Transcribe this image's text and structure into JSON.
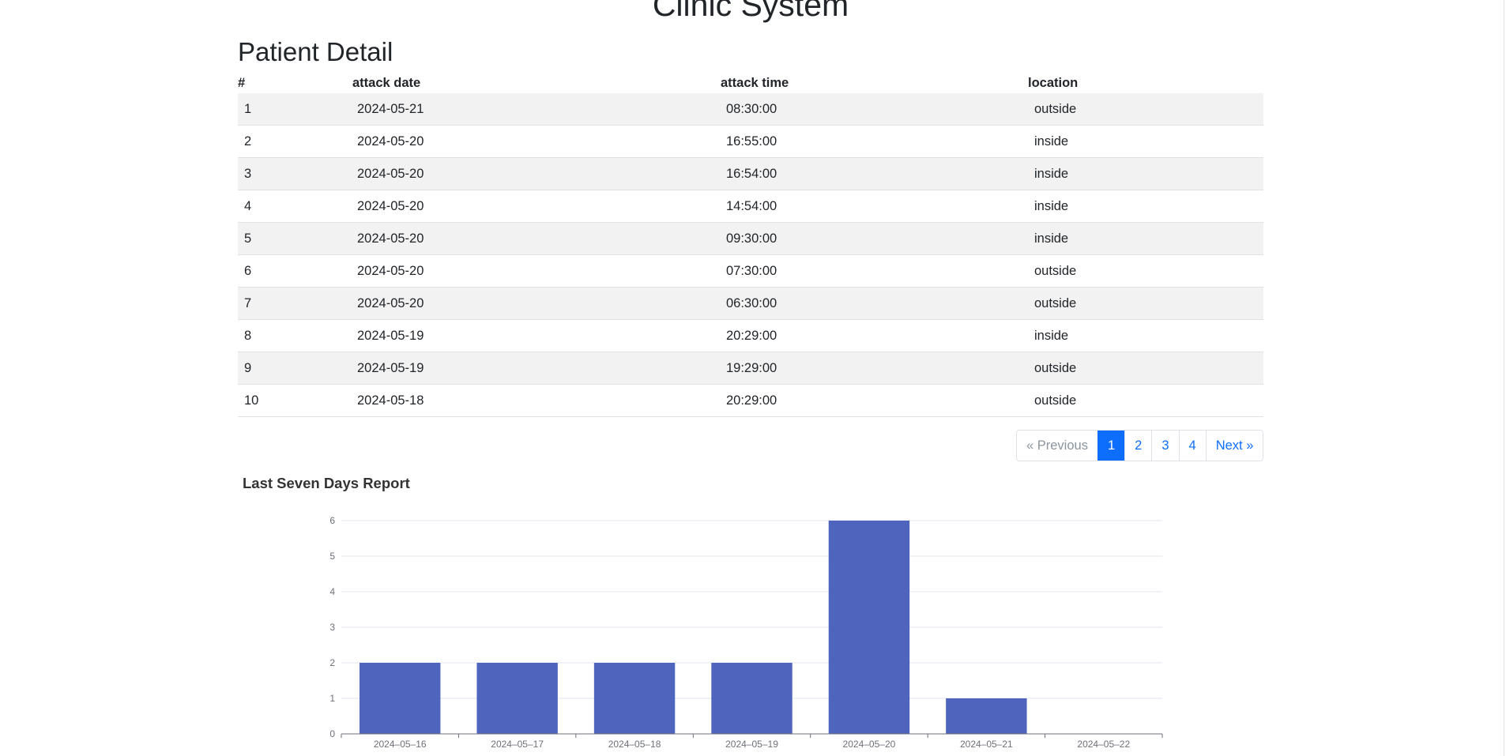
{
  "header": {
    "app_title": "Clinic System",
    "section_title": "Patient Detail"
  },
  "table": {
    "columns": [
      "#",
      "attack date",
      "attack time",
      "location"
    ],
    "rows": [
      {
        "num": "1",
        "date": "2024-05-21",
        "time": "08:30:00",
        "location": "outside"
      },
      {
        "num": "2",
        "date": "2024-05-20",
        "time": "16:55:00",
        "location": "inside"
      },
      {
        "num": "3",
        "date": "2024-05-20",
        "time": "16:54:00",
        "location": "inside"
      },
      {
        "num": "4",
        "date": "2024-05-20",
        "time": "14:54:00",
        "location": "inside"
      },
      {
        "num": "5",
        "date": "2024-05-20",
        "time": "09:30:00",
        "location": "inside"
      },
      {
        "num": "6",
        "date": "2024-05-20",
        "time": "07:30:00",
        "location": "outside"
      },
      {
        "num": "7",
        "date": "2024-05-20",
        "time": "06:30:00",
        "location": "outside"
      },
      {
        "num": "8",
        "date": "2024-05-19",
        "time": "20:29:00",
        "location": "inside"
      },
      {
        "num": "9",
        "date": "2024-05-19",
        "time": "19:29:00",
        "location": "outside"
      },
      {
        "num": "10",
        "date": "2024-05-18",
        "time": "20:29:00",
        "location": "outside"
      }
    ]
  },
  "pagination": {
    "previous": "« Previous",
    "pages": [
      "1",
      "2",
      "3",
      "4"
    ],
    "current_page": "1",
    "next": "Next »"
  },
  "colors": {
    "bar": "#4f65bd",
    "active_page": "#0d6efd",
    "stripe": "#f2f2f2"
  },
  "chart_data": {
    "type": "bar",
    "title": "Last Seven Days Report",
    "categories": [
      "2024–05–16",
      "2024–05–17",
      "2024–05–18",
      "2024–05–19",
      "2024–05–20",
      "2024–05–21",
      "2024–05–22"
    ],
    "values": [
      2,
      2,
      2,
      2,
      6,
      1,
      0
    ],
    "yticks": [
      0,
      1,
      2,
      3,
      4,
      5,
      6
    ],
    "ylim": [
      0,
      6
    ],
    "grid": true,
    "legend": "none"
  }
}
